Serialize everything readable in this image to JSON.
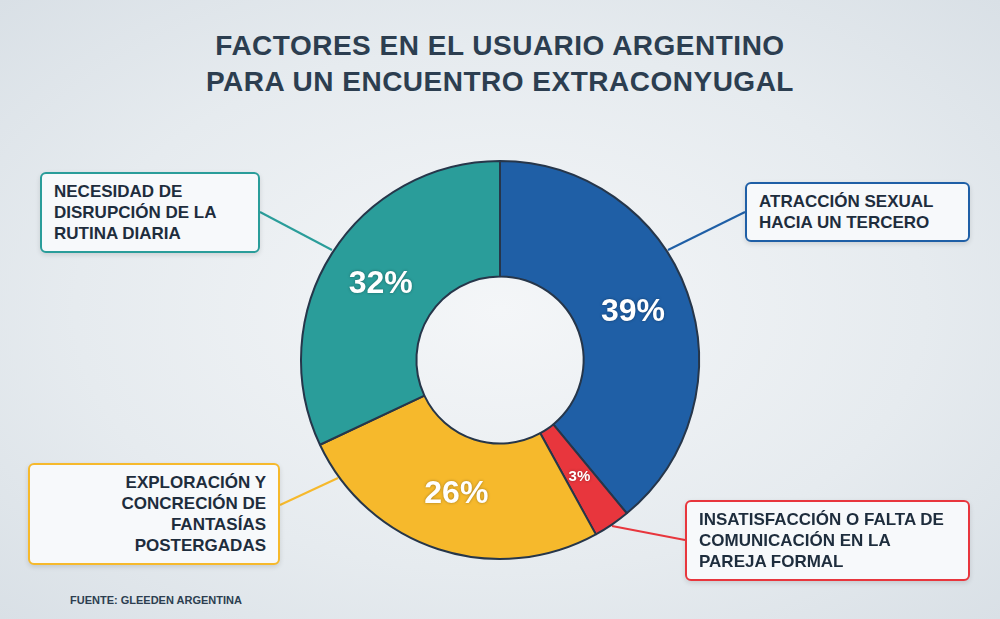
{
  "chart_data": {
    "type": "doughnut",
    "title": "FACTORES EN EL USUARIO ARGENTINO PARA UN ENCUENTRO EXTRACONYUGAL",
    "categories": [
      "ATRACCIÓN SEXUAL HACIA UN TERCERO",
      "INSATISFACCIÓN O FALTA DE COMUNICACIÓN EN LA PAREJA FORMAL",
      "EXPLORACIÓN Y CONCRECIÓN DE FANTASÍAS POSTERGADAS",
      "NECESIDAD DE DISRUPCIÓN DE LA RUTINA DIARIA"
    ],
    "values": [
      39,
      3,
      26,
      32
    ],
    "value_labels": [
      "39%",
      "3%",
      "26%",
      "32%"
    ],
    "colors": [
      "#1f5fa6",
      "#e8363d",
      "#f6b92c",
      "#2a9d9a"
    ],
    "data_labels": true,
    "source": "FUENTE: GLEEDEN ARGENTINA"
  }
}
